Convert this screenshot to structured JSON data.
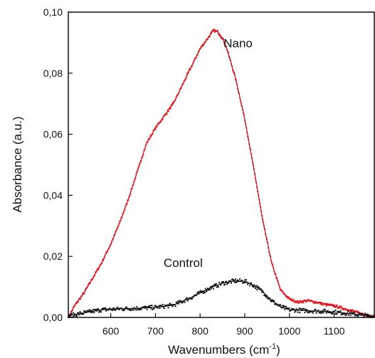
{
  "chart_data": {
    "type": "line",
    "title": "",
    "xlabel": "Wavenumbers (cm",
    "xlabel_sup": "-1",
    "xlabel_close": ")",
    "ylabel": "Absorbance (a.u.)",
    "xlim": [
      505,
      1190
    ],
    "ylim": [
      0,
      0.1
    ],
    "x_ticks": [
      {
        "value": 600,
        "label": "600"
      },
      {
        "value": 700,
        "label": "700"
      },
      {
        "value": 800,
        "label": "800"
      },
      {
        "value": 900,
        "label": "900"
      },
      {
        "value": 1000,
        "label": "1000"
      },
      {
        "value": 1100,
        "label": "1100"
      }
    ],
    "y_ticks": [
      {
        "value": 0.0,
        "label": "0,00"
      },
      {
        "value": 0.02,
        "label": "0,02"
      },
      {
        "value": 0.04,
        "label": "0,04"
      },
      {
        "value": 0.06,
        "label": "0,06"
      },
      {
        "value": 0.08,
        "label": "0,08"
      },
      {
        "value": 0.1,
        "label": "0,10"
      }
    ],
    "grid": false,
    "series": [
      {
        "name": "Nano",
        "color": "#e8141c",
        "fit_color": "#b0171c",
        "x": [
          505,
          520,
          540,
          560,
          580,
          600,
          620,
          640,
          660,
          680,
          700,
          720,
          740,
          760,
          780,
          800,
          820,
          830,
          840,
          850,
          860,
          880,
          900,
          920,
          940,
          960,
          980,
          1000,
          1020,
          1040,
          1060,
          1080,
          1100,
          1120,
          1140,
          1160,
          1190
        ],
        "y": [
          0.0,
          0.004,
          0.008,
          0.013,
          0.018,
          0.024,
          0.031,
          0.039,
          0.048,
          0.057,
          0.062,
          0.066,
          0.07,
          0.076,
          0.082,
          0.088,
          0.092,
          0.094,
          0.0935,
          0.0915,
          0.088,
          0.078,
          0.065,
          0.049,
          0.032,
          0.018,
          0.009,
          0.006,
          0.005,
          0.0055,
          0.005,
          0.0042,
          0.0038,
          0.003,
          0.0022,
          0.0012,
          0.0003
        ]
      },
      {
        "name": "Control",
        "color": "#111111",
        "fit_color": "#111111",
        "x": [
          505,
          540,
          580,
          620,
          660,
          700,
          740,
          780,
          820,
          850,
          880,
          900,
          920,
          940,
          960,
          980,
          1000,
          1040,
          1080,
          1120,
          1160,
          1190
        ],
        "y": [
          0.0005,
          0.0015,
          0.0025,
          0.0028,
          0.003,
          0.0033,
          0.004,
          0.0065,
          0.0095,
          0.0112,
          0.012,
          0.0118,
          0.0105,
          0.0085,
          0.0055,
          0.0035,
          0.0025,
          0.0022,
          0.002,
          0.0015,
          0.0008,
          0.0003
        ]
      }
    ],
    "annotations": [
      {
        "text": "Nano",
        "x": 885,
        "y": 0.0885
      },
      {
        "text": "Control",
        "x": 762,
        "y": 0.0165
      }
    ]
  }
}
